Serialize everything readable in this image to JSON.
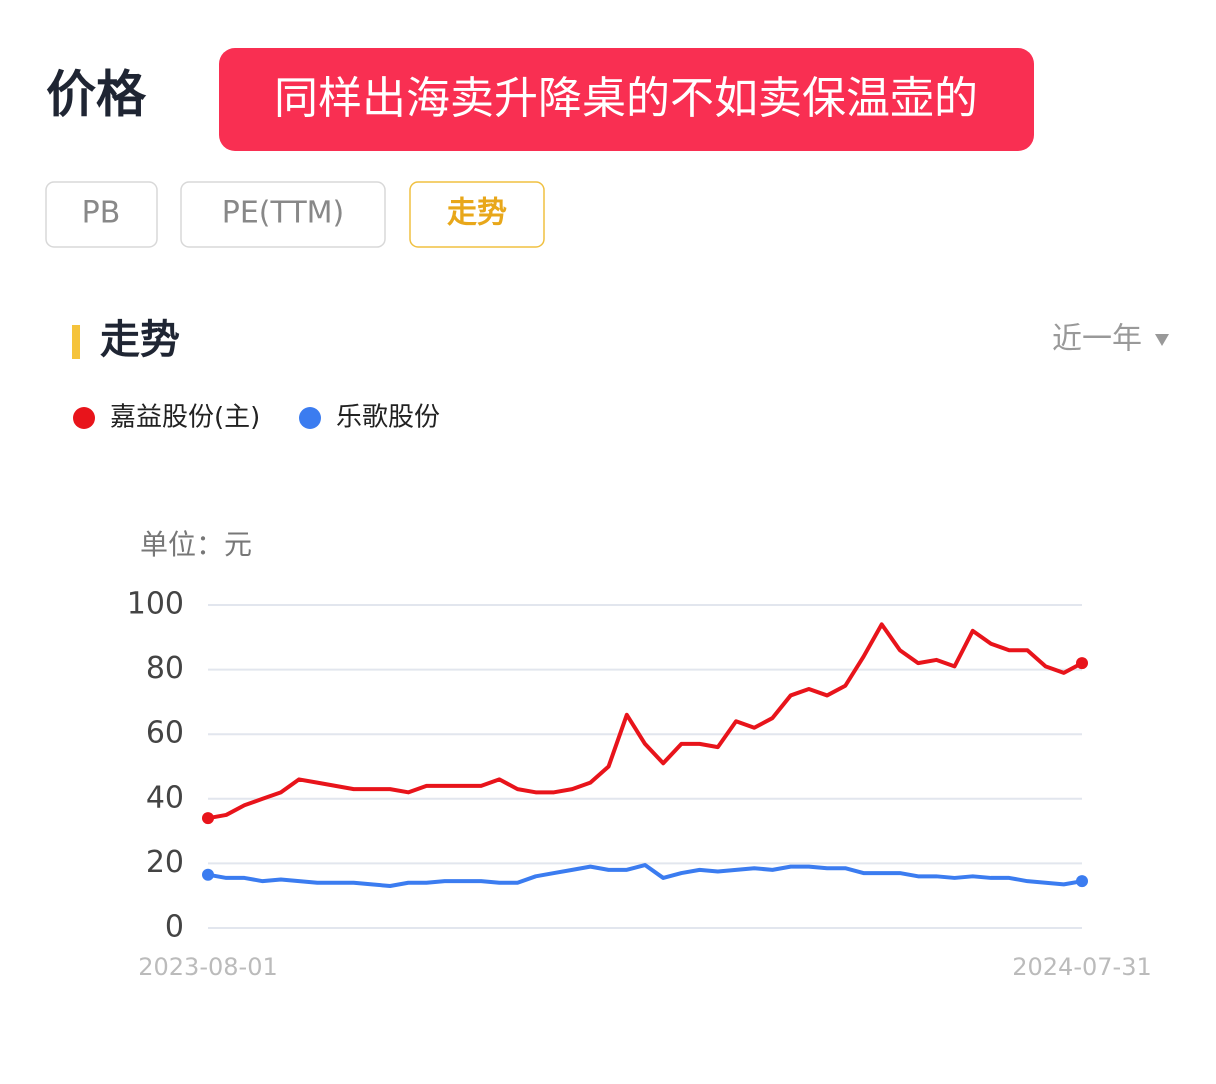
{
  "header": {
    "title": "价格",
    "banner": "同样出海卖升降桌的不如卖保温壶的"
  },
  "tabs": [
    "PB",
    "PE(TTM)",
    "走势"
  ],
  "section": {
    "title": "走势",
    "range": "近一年"
  },
  "chart_data": {
    "type": "line",
    "y_label": "单位：元",
    "categories": [
      "2023-08-01",
      null,
      null,
      null,
      null,
      null,
      null,
      null,
      null,
      null,
      null,
      null,
      null,
      null,
      null,
      null,
      null,
      null,
      null,
      null,
      null,
      null,
      null,
      null,
      null,
      null,
      null,
      null,
      null,
      null,
      null,
      null,
      null,
      null,
      null,
      null,
      null,
      null,
      null,
      null,
      null,
      null,
      null,
      null,
      null,
      null,
      null,
      null,
      "2024-07-31"
    ],
    "series": [
      {
        "name": "嘉益股份(主)",
        "color": "#e8141b",
        "values": [
          34,
          35,
          38,
          40,
          42,
          46,
          45,
          44,
          43,
          43,
          43,
          42,
          44,
          44,
          44,
          44,
          46,
          43,
          42,
          42,
          43,
          45,
          50,
          66,
          57,
          51,
          57,
          57,
          56,
          64,
          62,
          65,
          72,
          74,
          72,
          75,
          84,
          94,
          86,
          82,
          83,
          81,
          92,
          88,
          86,
          86,
          81,
          79,
          82
        ]
      },
      {
        "name": "乐歌股份",
        "color": "#3b7cf0",
        "values": [
          16.5,
          15.5,
          15.5,
          14.5,
          15,
          14.5,
          14,
          14,
          14,
          13.5,
          13,
          14,
          14,
          14.5,
          14.5,
          14.5,
          14,
          14,
          16,
          17,
          18,
          19,
          18,
          18,
          19.5,
          15.5,
          17,
          18,
          17.5,
          18,
          18.5,
          18,
          19,
          19,
          18.5,
          18.5,
          17,
          17,
          17,
          16,
          16,
          15.5,
          16,
          15.5,
          15.5,
          14.5,
          14,
          13.5,
          14.5
        ]
      }
    ],
    "ylim": [
      0,
      100
    ],
    "yticks": [
      0,
      20,
      40,
      60,
      80,
      100
    ],
    "grid": true
  }
}
